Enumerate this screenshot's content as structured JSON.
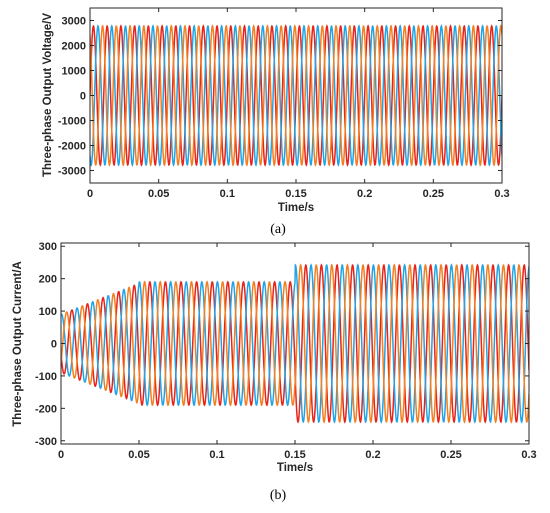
{
  "chart_data": [
    {
      "type": "line",
      "panel": "(a)",
      "xlabel": "Time/s",
      "ylabel": "Three-phase Output Voltage/V",
      "xlim": [
        0,
        0.3
      ],
      "ylim": [
        -3500,
        3500
      ],
      "xticks": [
        "0",
        "0.05",
        "0.1",
        "0.15",
        "0.2",
        "0.25",
        "0.3"
      ],
      "yticks": [
        "-3000",
        "-2000",
        "-1000",
        "0",
        "1000",
        "2000",
        "3000"
      ],
      "ytick_values": [
        -3000,
        -2000,
        -1000,
        0,
        1000,
        2000,
        3000
      ],
      "frequency_hz": 100,
      "amplitude": [
        {
          "from": 0,
          "to": 0.3,
          "value": 2780
        }
      ],
      "series": [
        {
          "phase_deg": 0,
          "color": "#e8231a"
        },
        {
          "phase_deg": -120,
          "color": "#21a4e6"
        },
        {
          "phase_deg": 120,
          "color": "#f27f22"
        }
      ],
      "grid": false
    },
    {
      "type": "line",
      "panel": "(b)",
      "xlabel": "Time/s",
      "ylabel": "Three-phase Output Current/A",
      "xlim": [
        0,
        0.3
      ],
      "ylim": [
        -310,
        310
      ],
      "xticks": [
        "0",
        "0.05",
        "0.1",
        "0.15",
        "0.2",
        "0.25",
        "0.3"
      ],
      "yticks": [
        "-300",
        "-200",
        "-100",
        "0",
        "100",
        "200",
        "300"
      ],
      "ytick_values": [
        -300,
        -200,
        -100,
        0,
        100,
        200,
        300
      ],
      "frequency_hz": 100,
      "amplitude": [
        {
          "from": 0,
          "to": 0.05,
          "value_start": 90,
          "value_end": 185
        },
        {
          "from": 0.05,
          "to": 0.15,
          "value": 190
        },
        {
          "from": 0.15,
          "to": 0.3,
          "value": 242
        }
      ],
      "series": [
        {
          "phase_deg": 200,
          "color": "#e8231a"
        },
        {
          "phase_deg": 80,
          "color": "#21a4e6"
        },
        {
          "phase_deg": -40,
          "color": "#f27f22"
        }
      ],
      "grid": false
    }
  ],
  "captions": [
    "(a)",
    "(b)"
  ]
}
